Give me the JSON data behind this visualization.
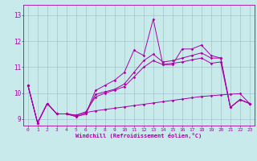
{
  "xlabel": "Windchill (Refroidissement éolien,°C)",
  "background_color": "#c8eaea",
  "line_color": "#aa00aa",
  "grid_color": "#99bbcc",
  "x_values": [
    0,
    1,
    2,
    3,
    4,
    5,
    6,
    7,
    8,
    9,
    10,
    11,
    12,
    13,
    14,
    15,
    16,
    17,
    18,
    19,
    20,
    21,
    22,
    23
  ],
  "series1": [
    10.3,
    8.85,
    9.6,
    9.2,
    9.2,
    9.1,
    9.2,
    10.1,
    10.3,
    10.5,
    10.8,
    11.65,
    11.45,
    12.85,
    11.1,
    11.1,
    11.7,
    11.7,
    11.85,
    11.45,
    11.35,
    9.45,
    9.75,
    9.6
  ],
  "series2": [
    10.3,
    8.85,
    9.6,
    9.2,
    9.2,
    9.1,
    9.2,
    9.95,
    10.05,
    10.15,
    10.35,
    10.8,
    11.25,
    11.5,
    11.2,
    11.25,
    11.35,
    11.45,
    11.55,
    11.35,
    11.35,
    9.45,
    9.75,
    9.6
  ],
  "series3": [
    10.3,
    8.85,
    9.6,
    9.2,
    9.2,
    9.15,
    9.25,
    9.32,
    9.37,
    9.42,
    9.47,
    9.52,
    9.57,
    9.62,
    9.67,
    9.72,
    9.77,
    9.82,
    9.87,
    9.9,
    9.93,
    9.96,
    9.98,
    9.6
  ],
  "series4": [
    10.3,
    8.85,
    9.6,
    9.2,
    9.2,
    9.15,
    9.28,
    9.85,
    10.0,
    10.12,
    10.25,
    10.62,
    11.0,
    11.25,
    11.1,
    11.15,
    11.2,
    11.28,
    11.35,
    11.15,
    11.2,
    9.45,
    9.75,
    9.6
  ],
  "ylim": [
    8.75,
    13.4
  ],
  "yticks": [
    9,
    10,
    11,
    12,
    13
  ],
  "figsize": [
    3.2,
    2.0
  ],
  "dpi": 100
}
